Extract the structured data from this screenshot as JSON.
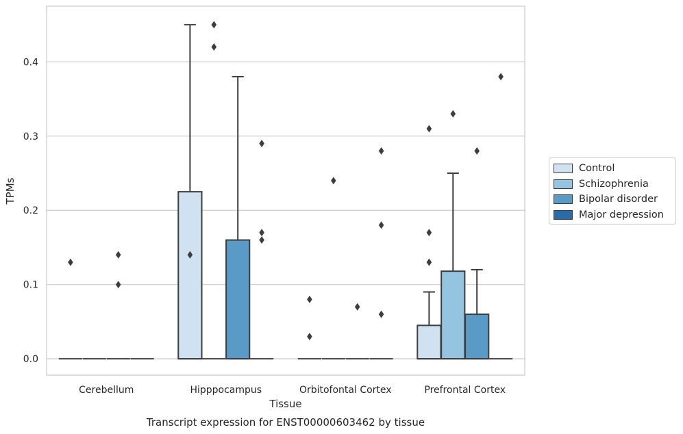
{
  "chart_data": {
    "type": "box",
    "title": "",
    "caption": "Transcript expression for ENST00000603462 by tissue",
    "xlabel": "Tissue",
    "ylabel": "TPMs",
    "categories": [
      "Cerebellum",
      "Hipppocampus",
      "Orbitofontal Cortex",
      "Prefrontal Cortex"
    ],
    "ylim": [
      -0.022,
      0.475
    ],
    "yticks": [
      0.0,
      0.1,
      0.2,
      0.3,
      0.4
    ],
    "ytick_labels": [
      "0.0",
      "0.1",
      "0.2",
      "0.3",
      "0.4"
    ],
    "grid": "horizontal",
    "legend_position": "outside-right",
    "series": [
      {
        "name": "Control",
        "color": "#d0e1f2",
        "boxes": [
          {
            "q1": 0,
            "median": 0,
            "q3": 0,
            "whisker_low": 0,
            "whisker_high": 0,
            "outliers": [
              0.13
            ]
          },
          {
            "q1": 0,
            "median": 0,
            "q3": 0.225,
            "whisker_low": 0,
            "whisker_high": 0.45,
            "outliers": [
              0.14
            ]
          },
          {
            "q1": 0,
            "median": 0,
            "q3": 0,
            "whisker_low": 0,
            "whisker_high": 0,
            "outliers": [
              0.03,
              0.08
            ]
          },
          {
            "q1": 0,
            "median": 0,
            "q3": 0.045,
            "whisker_low": 0,
            "whisker_high": 0.09,
            "outliers": [
              0.13,
              0.17,
              0.31
            ]
          }
        ]
      },
      {
        "name": "Schizophrenia",
        "color": "#94c4df",
        "boxes": [
          {
            "q1": 0,
            "median": 0,
            "q3": 0,
            "whisker_low": 0,
            "whisker_high": 0,
            "outliers": []
          },
          {
            "q1": 0,
            "median": 0,
            "q3": 0,
            "whisker_low": 0,
            "whisker_high": 0,
            "outliers": [
              0.42,
              0.45
            ]
          },
          {
            "q1": 0,
            "median": 0,
            "q3": 0,
            "whisker_low": 0,
            "whisker_high": 0,
            "outliers": [
              0.24
            ]
          },
          {
            "q1": 0,
            "median": 0,
            "q3": 0.118,
            "whisker_low": 0,
            "whisker_high": 0.25,
            "outliers": [
              0.33
            ]
          }
        ]
      },
      {
        "name": "Bipolar disorder",
        "color": "#5a9ac6",
        "boxes": [
          {
            "q1": 0,
            "median": 0,
            "q3": 0,
            "whisker_low": 0,
            "whisker_high": 0,
            "outliers": [
              0.1,
              0.14
            ]
          },
          {
            "q1": 0,
            "median": 0,
            "q3": 0.16,
            "whisker_low": 0,
            "whisker_high": 0.38,
            "outliers": []
          },
          {
            "q1": 0,
            "median": 0,
            "q3": 0,
            "whisker_low": 0,
            "whisker_high": 0,
            "outliers": [
              0.07
            ]
          },
          {
            "q1": 0,
            "median": 0,
            "q3": 0.06,
            "whisker_low": 0,
            "whisker_high": 0.12,
            "outliers": [
              0.28
            ]
          }
        ]
      },
      {
        "name": "Major depression",
        "color": "#2b6ca8",
        "boxes": [
          {
            "q1": 0,
            "median": 0,
            "q3": 0,
            "whisker_low": 0,
            "whisker_high": 0,
            "outliers": []
          },
          {
            "q1": 0,
            "median": 0,
            "q3": 0,
            "whisker_low": 0,
            "whisker_high": 0,
            "outliers": [
              0.16,
              0.17,
              0.29
            ]
          },
          {
            "q1": 0,
            "median": 0,
            "q3": 0,
            "whisker_low": 0,
            "whisker_high": 0,
            "outliers": [
              0.06,
              0.18,
              0.28
            ]
          },
          {
            "q1": 0,
            "median": 0,
            "q3": 0,
            "whisker_low": 0,
            "whisker_high": 0,
            "outliers": [
              0.38
            ]
          }
        ]
      }
    ]
  }
}
